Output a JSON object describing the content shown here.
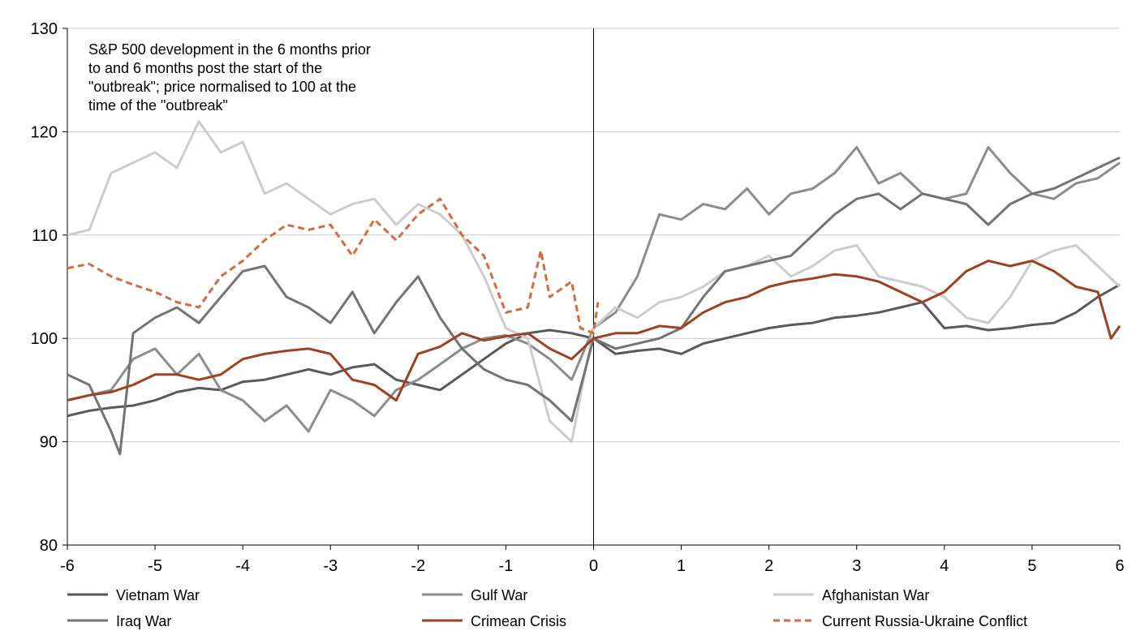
{
  "chart_data": {
    "type": "line",
    "title": "",
    "annotation": [
      "S&P 500 development in the 6 months prior",
      "to and 6 months post the start of the",
      "\"outbreak\"; price normalised to 100 at the",
      "time of the \"outbreak\""
    ],
    "xlabel": "",
    "ylabel": "",
    "xlim": [
      -6,
      6
    ],
    "ylim": [
      80,
      130
    ],
    "xticks": [
      -6,
      -5,
      -4,
      -3,
      -2,
      -1,
      0,
      1,
      2,
      3,
      4,
      5,
      6
    ],
    "yticks": [
      80,
      90,
      100,
      110,
      120,
      130
    ],
    "grid": "horizontal",
    "legend_position": "bottom",
    "series": [
      {
        "name": "Vietnam War",
        "color": "#595959",
        "dash": "solid",
        "x": [
          -6,
          -5.75,
          -5.5,
          -5.25,
          -5,
          -4.75,
          -4.5,
          -4.25,
          -4,
          -3.75,
          -3.5,
          -3.25,
          -3,
          -2.75,
          -2.5,
          -2.25,
          -2,
          -1.75,
          -1.5,
          -1.25,
          -1,
          -0.75,
          -0.5,
          -0.25,
          0,
          0.25,
          0.5,
          0.75,
          1,
          1.25,
          1.5,
          1.75,
          2,
          2.25,
          2.5,
          2.75,
          3,
          3.25,
          3.5,
          3.75,
          4,
          4.25,
          4.5,
          4.75,
          5,
          5.25,
          5.5,
          5.75,
          6
        ],
        "y": [
          92.5,
          93,
          93.3,
          93.5,
          94,
          94.8,
          95.2,
          95,
          95.8,
          96,
          96.5,
          97,
          96.5,
          97.2,
          97.5,
          96,
          95.5,
          95,
          96.5,
          98,
          99.5,
          100.5,
          100.8,
          100.5,
          100,
          98.5,
          98.8,
          99,
          98.5,
          99.5,
          100,
          100.5,
          101,
          101.3,
          101.5,
          102,
          102.2,
          102.5,
          103,
          103.5,
          101,
          101.2,
          100.8,
          101,
          101.3,
          101.5,
          102.5,
          104,
          105.2
        ]
      },
      {
        "name": "Gulf War",
        "color": "#8c8c8c",
        "dash": "solid",
        "x": [
          -6,
          -5.75,
          -5.5,
          -5.25,
          -5,
          -4.75,
          -4.5,
          -4.25,
          -4,
          -3.75,
          -3.5,
          -3.25,
          -3,
          -2.75,
          -2.5,
          -2.25,
          -2,
          -1.75,
          -1.5,
          -1.25,
          -1,
          -0.75,
          -0.5,
          -0.25,
          0,
          0.25,
          0.5,
          0.75,
          1,
          1.25,
          1.5,
          1.75,
          2,
          2.25,
          2.5,
          2.75,
          3,
          3.25,
          3.5,
          3.75,
          4,
          4.25,
          4.5,
          4.75,
          5,
          5.25,
          5.5,
          5.75,
          6
        ],
        "y": [
          94,
          94.5,
          95,
          98,
          99,
          96.5,
          98.5,
          95,
          94,
          92,
          93.5,
          91,
          95,
          94,
          92.5,
          95,
          96,
          97.5,
          99,
          100,
          100.3,
          99.5,
          98,
          96,
          101,
          102.5,
          106,
          112,
          111.5,
          113,
          112.5,
          114.5,
          112,
          114,
          114.5,
          116,
          118.5,
          115,
          116,
          114,
          113.5,
          114,
          118.5,
          116,
          114,
          113.5,
          115,
          115.5,
          117
        ]
      },
      {
        "name": "Afghanistan War",
        "color": "#cccccc",
        "dash": "solid",
        "x": [
          -6,
          -5.75,
          -5.5,
          -5.25,
          -5,
          -4.75,
          -4.5,
          -4.25,
          -4,
          -3.75,
          -3.5,
          -3.25,
          -3,
          -2.75,
          -2.5,
          -2.25,
          -2,
          -1.75,
          -1.5,
          -1.25,
          -1,
          -0.75,
          -0.5,
          -0.25,
          0,
          0.25,
          0.5,
          0.75,
          1,
          1.25,
          1.5,
          1.75,
          2,
          2.25,
          2.5,
          2.75,
          3,
          3.25,
          3.5,
          3.75,
          4,
          4.25,
          4.5,
          4.75,
          5,
          5.25,
          5.5,
          5.75,
          6
        ],
        "y": [
          110,
          110.5,
          116,
          117,
          118,
          116.5,
          121,
          118,
          119,
          114,
          115,
          113.5,
          112,
          113,
          113.5,
          111,
          113,
          112,
          110,
          106,
          101,
          100,
          92,
          90,
          101,
          103,
          102,
          103.5,
          104,
          105,
          106.5,
          107,
          108,
          106,
          107,
          108.5,
          109,
          106,
          105.5,
          105,
          104,
          102,
          101.5,
          104,
          107.5,
          108.5,
          109,
          107,
          105
        ]
      },
      {
        "name": "Iraq War",
        "color": "#737373",
        "dash": "solid",
        "x": [
          -6,
          -5.75,
          -5.5,
          -5.4,
          -5.25,
          -5,
          -4.75,
          -4.5,
          -4.25,
          -4,
          -3.75,
          -3.5,
          -3.25,
          -3,
          -2.75,
          -2.5,
          -2.25,
          -2,
          -1.75,
          -1.5,
          -1.25,
          -1,
          -0.75,
          -0.5,
          -0.25,
          0,
          0.25,
          0.5,
          0.75,
          1,
          1.25,
          1.5,
          1.75,
          2,
          2.25,
          2.5,
          2.75,
          3,
          3.25,
          3.5,
          3.75,
          4,
          4.25,
          4.5,
          4.75,
          5,
          5.25,
          5.5,
          5.75,
          6
        ],
        "y": [
          96.5,
          95.5,
          91,
          88.8,
          100.5,
          102,
          103,
          101.5,
          104,
          106.5,
          107,
          104,
          103,
          101.5,
          104.5,
          100.5,
          103.5,
          106,
          102,
          99,
          97,
          96,
          95.5,
          94,
          92,
          100,
          99,
          99.5,
          100,
          101,
          104,
          106.5,
          107,
          107.5,
          108,
          110,
          112,
          113.5,
          114,
          112.5,
          114,
          113.5,
          113,
          111,
          113,
          114,
          114.5,
          115.5,
          116.5,
          117.5
        ]
      },
      {
        "name": "Crimean Crisis",
        "color": "#a0401f",
        "dash": "solid",
        "x": [
          -6,
          -5.75,
          -5.5,
          -5.25,
          -5,
          -4.75,
          -4.5,
          -4.25,
          -4,
          -3.75,
          -3.5,
          -3.25,
          -3,
          -2.75,
          -2.5,
          -2.25,
          -2,
          -1.75,
          -1.5,
          -1.25,
          -1,
          -0.75,
          -0.5,
          -0.25,
          0,
          0.25,
          0.5,
          0.75,
          1,
          1.25,
          1.5,
          1.75,
          2,
          2.25,
          2.5,
          2.75,
          3,
          3.25,
          3.5,
          3.75,
          4,
          4.25,
          4.5,
          4.75,
          5,
          5.25,
          5.5,
          5.75,
          5.9,
          6
        ],
        "y": [
          94,
          94.5,
          94.8,
          95.5,
          96.5,
          96.5,
          96,
          96.5,
          98,
          98.5,
          98.8,
          99,
          98.5,
          96,
          95.5,
          94,
          98.5,
          99.2,
          100.5,
          99.8,
          100.2,
          100.5,
          99,
          98,
          100,
          100.5,
          100.5,
          101.2,
          101,
          102.5,
          103.5,
          104,
          105,
          105.5,
          105.8,
          106.2,
          106,
          105.5,
          104.5,
          103.5,
          104.5,
          106.5,
          107.5,
          107,
          107.5,
          106.5,
          105,
          104.5,
          100,
          101.2
        ]
      },
      {
        "name": "Current Russia-Ukraine Conflict",
        "color": "#d56a3c",
        "dash": "dashed",
        "x": [
          -6,
          -5.75,
          -5.5,
          -5.25,
          -5,
          -4.75,
          -4.5,
          -4.25,
          -4,
          -3.75,
          -3.5,
          -3.25,
          -3,
          -2.75,
          -2.5,
          -2.25,
          -2,
          -1.75,
          -1.5,
          -1.25,
          -1,
          -0.75,
          -0.6,
          -0.5,
          -0.25,
          -0.15,
          0,
          0.05
        ],
        "y": [
          106.8,
          107.2,
          106,
          105.2,
          104.5,
          103.5,
          103,
          106,
          107.5,
          109.5,
          111,
          110.5,
          111,
          108,
          111.5,
          109.5,
          112,
          113.5,
          110,
          108,
          102.5,
          103,
          108.5,
          104,
          105.5,
          101,
          100.5,
          103.5
        ]
      }
    ]
  }
}
